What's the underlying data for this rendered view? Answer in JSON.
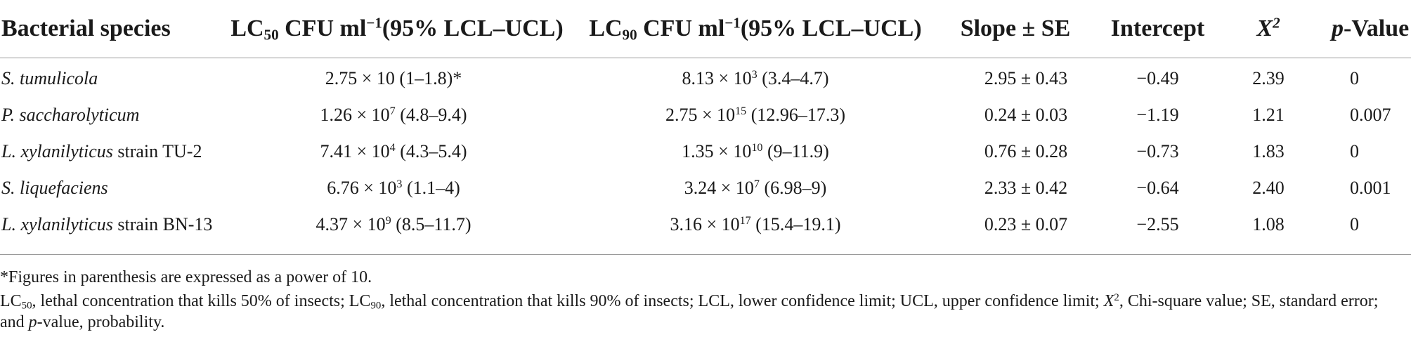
{
  "header": {
    "species": "Bacterial species",
    "lc50": {
      "prefix": "LC",
      "sub": "50",
      "mid": " CFU ml",
      "sup": "−1",
      "suffix": "(95% LCL–UCL)"
    },
    "lc90": {
      "prefix": "LC",
      "sub": "90",
      "mid": " CFU ml",
      "sup": "−1",
      "suffix": "(95% LCL–UCL)"
    },
    "slope": "Slope ± SE",
    "intercept": "Intercept",
    "x2": {
      "base": "X",
      "sup": "2"
    },
    "pvalue": {
      "italic": "p",
      "rest": "-Value"
    }
  },
  "rows": [
    {
      "species_italic": "S. tumulicola",
      "species_rest": "",
      "lc50": {
        "base": "2.75 × 10",
        "exp": "",
        "rest": " (1–1.8)*"
      },
      "lc90": {
        "base": "8.13 × 10",
        "exp": "3",
        "rest": " (3.4–4.7)"
      },
      "slope": "2.95 ± 0.43",
      "intercept": "−0.49",
      "x2": "2.39",
      "p": "0"
    },
    {
      "species_italic": "P. saccharolyticum",
      "species_rest": "",
      "lc50": {
        "base": "1.26 × 10",
        "exp": "7",
        "rest": " (4.8–9.4)"
      },
      "lc90": {
        "base": "2.75 × 10",
        "exp": "15",
        "rest": " (12.96–17.3)"
      },
      "slope": "0.24 ± 0.03",
      "intercept": "−1.19",
      "x2": "1.21",
      "p": "0.007"
    },
    {
      "species_italic": "L. xylanilyticus",
      "species_rest": " strain TU-2",
      "lc50": {
        "base": "7.41 × 10",
        "exp": "4",
        "rest": " (4.3–5.4)"
      },
      "lc90": {
        "base": "1.35 × 10",
        "exp": "10",
        "rest": " (9–11.9)"
      },
      "slope": "0.76 ± 0.28",
      "intercept": "−0.73",
      "x2": "1.83",
      "p": "0"
    },
    {
      "species_italic": "S. liquefaciens",
      "species_rest": "",
      "lc50": {
        "base": "6.76 × 10",
        "exp": "3",
        "rest": " (1.1–4)"
      },
      "lc90": {
        "base": "3.24 × 10",
        "exp": "7",
        "rest": " (6.98–9)"
      },
      "slope": "2.33 ± 0.42",
      "intercept": "−0.64",
      "x2": "2.40",
      "p": "0.001"
    },
    {
      "species_italic": "L. xylanilyticus",
      "species_rest": " strain BN-13",
      "lc50": {
        "base": "4.37 × 10",
        "exp": "9",
        "rest": " (8.5–11.7)"
      },
      "lc90": {
        "base": "3.16 × 10",
        "exp": "17",
        "rest": " (15.4–19.1)"
      },
      "slope": "0.23 ± 0.07",
      "intercept": "−2.55",
      "x2": "1.08",
      "p": "0"
    }
  ],
  "footnotes": {
    "note1": "*Figures in parenthesis are expressed as a power of 10.",
    "note2": {
      "p1": "LC",
      "p1_sub": "50",
      "p2": ", lethal concentration that kills 50% of insects; LC",
      "p2_sub": "90",
      "p3": ", lethal concentration that kills 90% of insects; LCL, lower confidence limit; UCL, upper confidence limit; ",
      "x_italic": "X",
      "x_sup": "2",
      "p4": ", Chi-square value; SE, standard error; and ",
      "p_italic": "p",
      "p5": "-value, probability."
    }
  }
}
